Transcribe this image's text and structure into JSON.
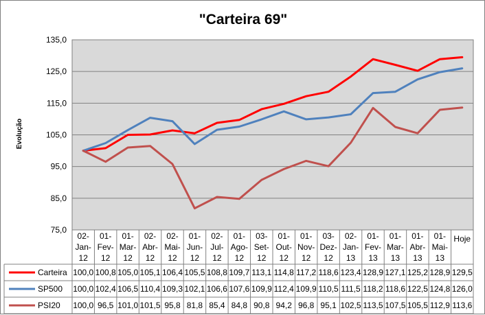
{
  "chart_data": {
    "type": "line",
    "title": "\"Carteira 69\"",
    "ylabel": "Evolução",
    "xlabel": "",
    "ylim": [
      75,
      135
    ],
    "yticks": [
      "75,0",
      "85,0",
      "95,0",
      "105,0",
      "115,0",
      "125,0",
      "135,0"
    ],
    "ytick_values": [
      75,
      85,
      95,
      105,
      115,
      125,
      135
    ],
    "grid": true,
    "legend": "data-table-left",
    "categories": [
      [
        "02-",
        "Jan-",
        "12"
      ],
      [
        "01-",
        "Fev-",
        "12"
      ],
      [
        "01-",
        "Mar-",
        "12"
      ],
      [
        "02-",
        "Abr-",
        "12"
      ],
      [
        "02-",
        "Mai-",
        "12"
      ],
      [
        "01-",
        "Jun-",
        "12"
      ],
      [
        "02-",
        "Jul-",
        "12"
      ],
      [
        "01-",
        "Ago-",
        "12"
      ],
      [
        "03-",
        "Set-",
        "12"
      ],
      [
        "01-",
        "Out-",
        "12"
      ],
      [
        "01-",
        "Nov-",
        "12"
      ],
      [
        "03-",
        "Dez-",
        "12"
      ],
      [
        "02-",
        "Jan-",
        "13"
      ],
      [
        "01-",
        "Fev-",
        "13"
      ],
      [
        "01-",
        "Mar-",
        "13"
      ],
      [
        "01-",
        "Abr-",
        "13"
      ],
      [
        "01-",
        "Mai-",
        "13"
      ],
      [
        "Hoje"
      ]
    ],
    "series": [
      {
        "name": "Carteira",
        "color": "#ff0000",
        "values": [
          100.0,
          100.8,
          105.0,
          105.1,
          106.4,
          105.5,
          108.8,
          109.7,
          113.1,
          114.8,
          117.2,
          118.6,
          123.4,
          128.9,
          127.1,
          125.2,
          128.9,
          129.5
        ],
        "labels": [
          "100,0",
          "100,8",
          "105,0",
          "105,1",
          "106,4",
          "105,5",
          "108,8",
          "109,7",
          "113,1",
          "114,8",
          "117,2",
          "118,6",
          "123,4",
          "128,9",
          "127,1",
          "125,2",
          "128,9",
          "129,5"
        ]
      },
      {
        "name": "SP500",
        "color": "#4f81bd",
        "values": [
          100.0,
          102.4,
          106.5,
          110.4,
          109.3,
          102.1,
          106.6,
          107.6,
          109.9,
          112.4,
          109.9,
          110.5,
          111.5,
          118.2,
          118.6,
          122.5,
          124.8,
          126.0
        ],
        "labels": [
          "100,0",
          "102,4",
          "106,5",
          "110,4",
          "109,3",
          "102,1",
          "106,6",
          "107,6",
          "109,9",
          "112,4",
          "109,9",
          "110,5",
          "111,5",
          "118,2",
          "118,6",
          "122,5",
          "124,8",
          "126,0"
        ]
      },
      {
        "name": "PSI20",
        "color": "#c0504d",
        "values": [
          100.0,
          96.5,
          101.0,
          101.5,
          95.8,
          81.8,
          85.4,
          84.8,
          90.8,
          94.2,
          96.8,
          95.1,
          102.5,
          113.5,
          107.5,
          105.5,
          112.9,
          113.6
        ],
        "labels": [
          "100,0",
          "96,5",
          "101,0",
          "101,5",
          "95,8",
          "81,8",
          "85,4",
          "84,8",
          "90,8",
          "94,2",
          "96,8",
          "95,1",
          "102,5",
          "113,5",
          "107,5",
          "105,5",
          "112,9",
          "113,6"
        ]
      }
    ]
  }
}
